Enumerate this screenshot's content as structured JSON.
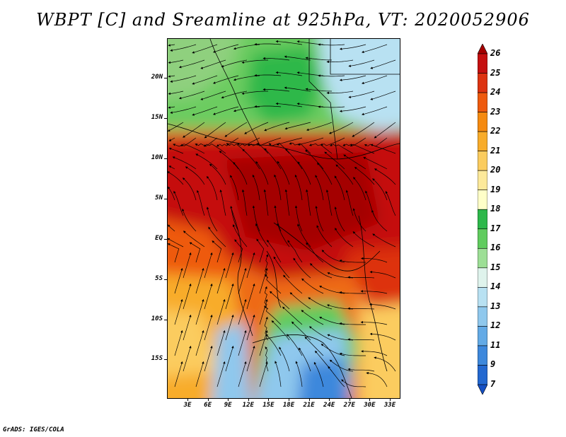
{
  "title": "WBPT [C] and Sreamline at 925hPa, VT: 2020052906",
  "credit": "GrADS: IGES/COLA",
  "map": {
    "lat_labels": [
      "20N",
      "15N",
      "10N",
      "5N",
      "EQ",
      "5S",
      "10S",
      "15S"
    ],
    "lon_labels": [
      "3E",
      "6E",
      "9E",
      "12E",
      "15E",
      "18E",
      "21E",
      "24E",
      "27E",
      "30E",
      "33E"
    ],
    "lat_range": [
      -20,
      24
    ],
    "lon_range": [
      0,
      35
    ]
  },
  "colorbar": {
    "labels": [
      "26",
      "25",
      "24",
      "23",
      "22",
      "21",
      "20",
      "19",
      "18",
      "17",
      "16",
      "15",
      "14",
      "13",
      "12",
      "11",
      "9",
      "7"
    ],
    "colors": [
      "#a40000",
      "#c51010",
      "#dd3311",
      "#ee5a0e",
      "#f58a10",
      "#f8ac2a",
      "#fbcc5e",
      "#fde99a",
      "#ffffc8",
      "#2db84a",
      "#60cc5e",
      "#9ddf96",
      "#dff3ec",
      "#b8e1f2",
      "#8fc8ed",
      "#63aae6",
      "#3d88dc",
      "#2368d0",
      "#1550c4"
    ]
  }
}
